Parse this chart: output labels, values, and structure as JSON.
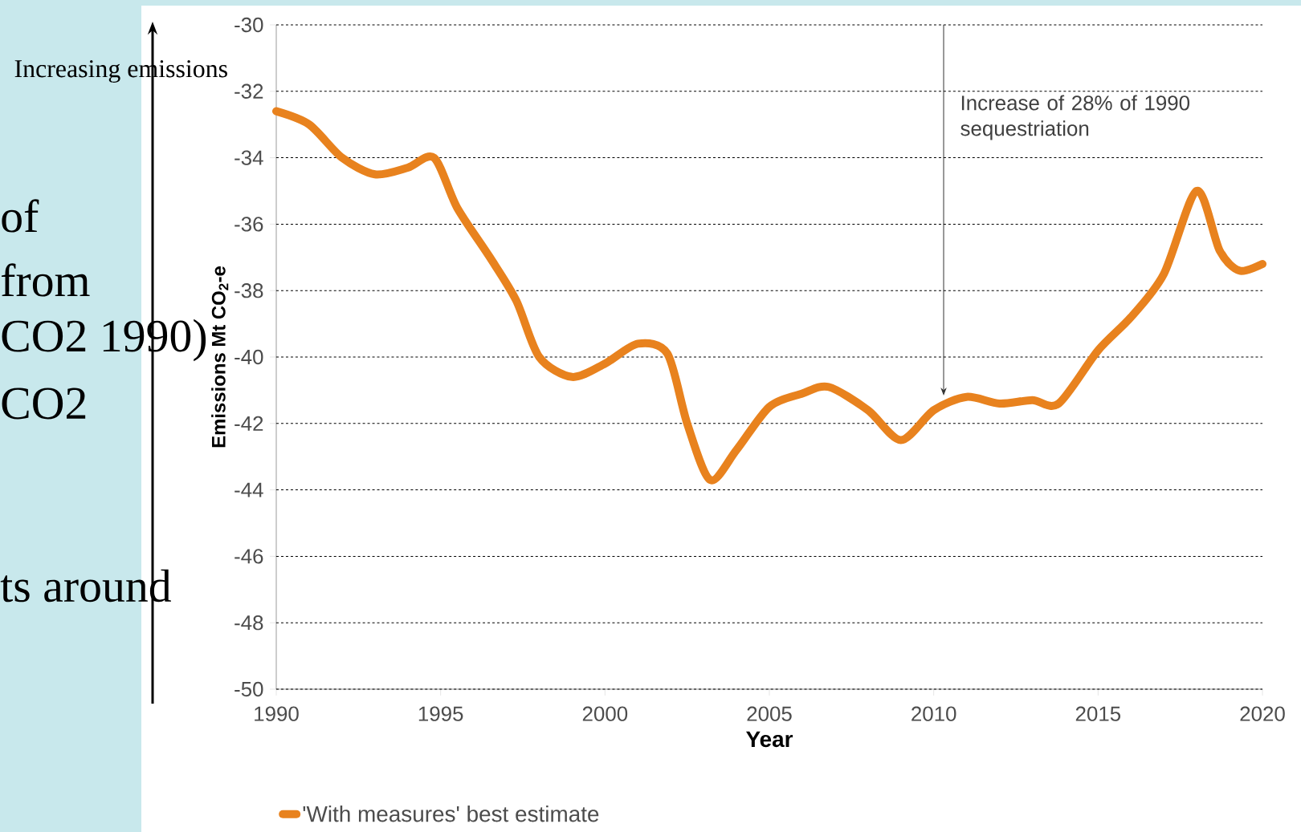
{
  "chart_data": {
    "type": "line",
    "xlabel": "Year",
    "ylabel": "Emissions Mt CO$_{2}$-e",
    "xlim": [
      1990,
      2020
    ],
    "ylim": [
      -50,
      -30
    ],
    "xticks": [
      1990,
      1995,
      2000,
      2005,
      2010,
      2015,
      2020
    ],
    "yticks": [
      -50,
      -48,
      -46,
      -44,
      -42,
      -40,
      -38,
      -36,
      -34,
      -32,
      -30
    ],
    "grid": "y",
    "legend": "bottom",
    "series": [
      {
        "name": "'With measures' best estimate",
        "color": "#e8821e",
        "x": [
          1990,
          1991,
          1992,
          1993,
          1994,
          1994.8,
          1995.5,
          1996.5,
          1997.3,
          1998,
          1999,
          2000,
          2001,
          2001.9,
          2002.5,
          2003.2,
          2004,
          2005,
          2006,
          2006.8,
          2008,
          2009,
          2010,
          2011,
          2012,
          2013,
          2013.8,
          2015,
          2016,
          2017,
          2018,
          2018.7,
          2019.3,
          2020
        ],
        "values": [
          -32.6,
          -33.0,
          -34.0,
          -34.5,
          -34.3,
          -34.0,
          -35.5,
          -37.0,
          -38.3,
          -40.0,
          -40.6,
          -40.2,
          -39.6,
          -39.9,
          -42.0,
          -43.7,
          -42.8,
          -41.5,
          -41.1,
          -40.9,
          -41.6,
          -42.5,
          -41.6,
          -41.2,
          -41.4,
          -41.3,
          -41.4,
          -39.8,
          -38.8,
          -37.5,
          -35.0,
          -36.8,
          -37.4,
          -37.2
        ]
      }
    ],
    "annotations": [
      "Increasing emissions",
      "of",
      "from",
      "CO2 1990)",
      "CO2",
      "ts around",
      "Increase of 28% of 1990 sequestriation"
    ]
  }
}
